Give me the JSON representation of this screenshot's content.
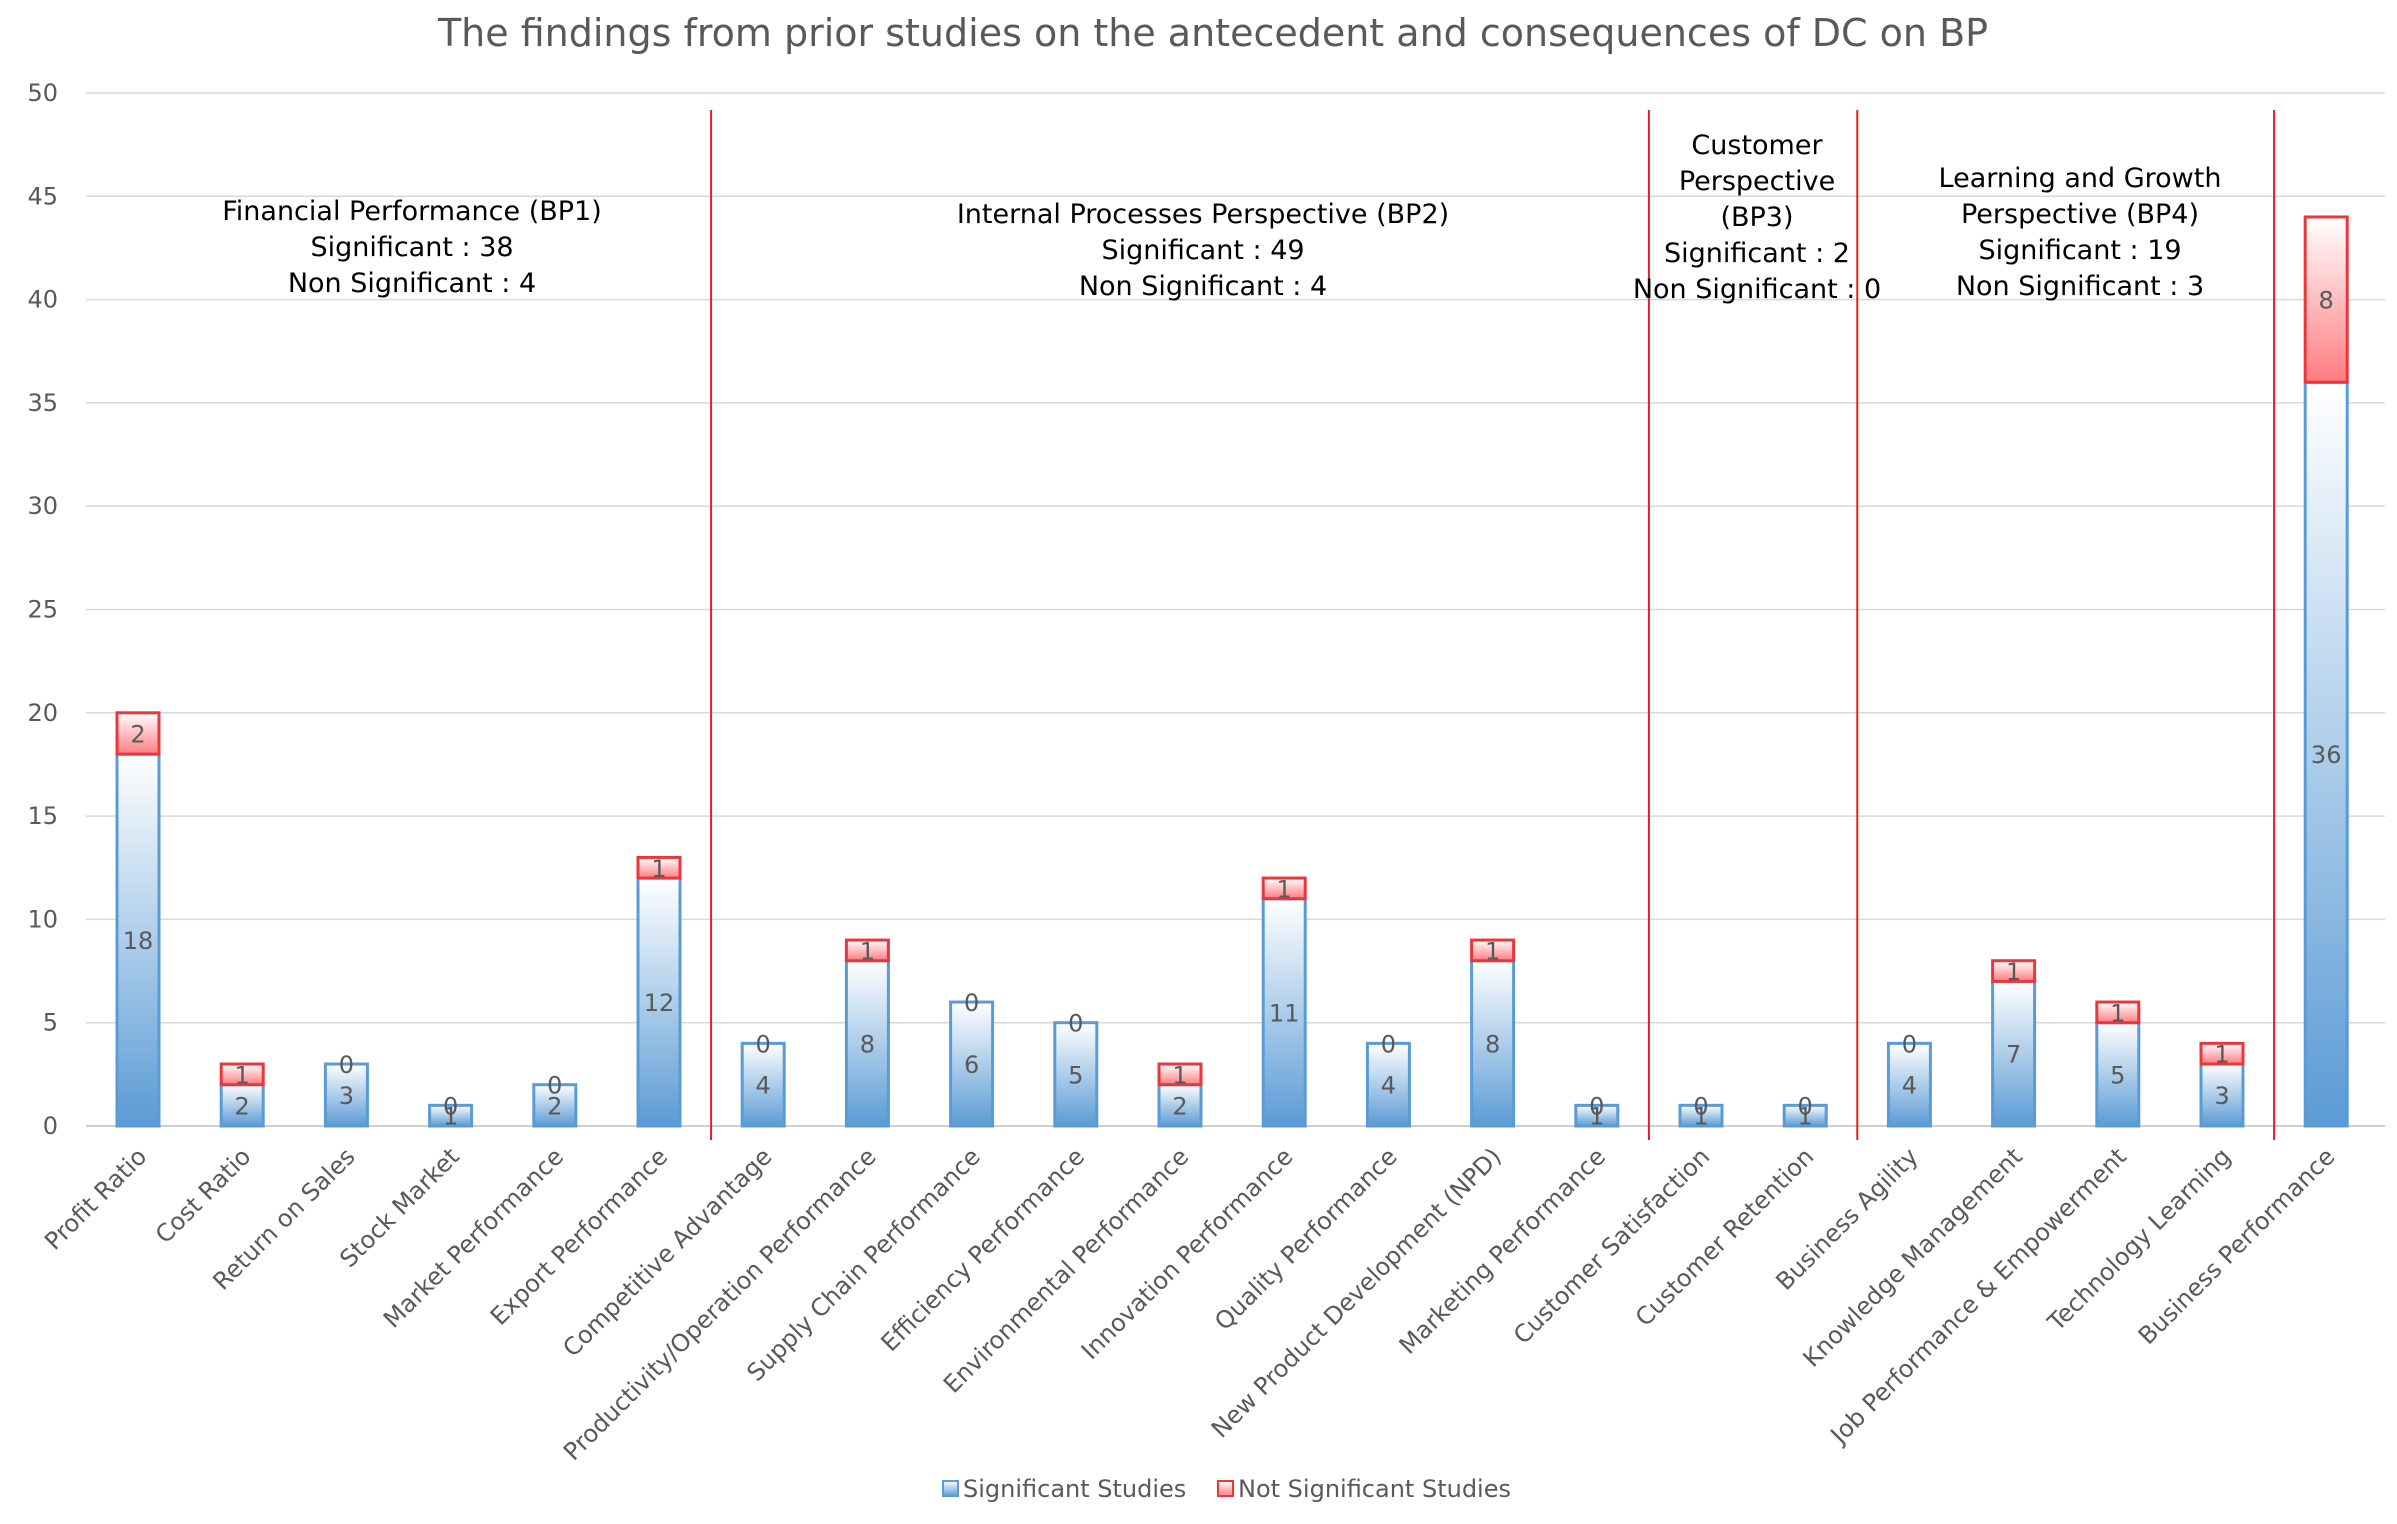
{
  "chart_data": {
    "type": "bar",
    "stacked": true,
    "title": "The findings from prior studies on the antecedent and consequences of DC on BP",
    "xlabel": "",
    "ylabel": "",
    "ylim": [
      0,
      50
    ],
    "yticks": [
      0,
      5,
      10,
      15,
      20,
      25,
      30,
      35,
      40,
      45,
      50
    ],
    "grid": true,
    "legend_position": "bottom",
    "categories": [
      "Profit Ratio",
      "Cost Ratio",
      "Return on Sales",
      "Stock Market",
      "Market Performance",
      "Export Performance",
      "Competitive Advantage",
      "Productivity/Operation Performance",
      "Supply Chain Performance",
      "Efficiency Performance",
      "Environmental Performance",
      "Innovation Performance",
      "Quality Performance",
      "New Product Development (NPD)",
      "Marketing Performance",
      "Customer Satisfaction",
      "Customer Retention",
      "Business Agility",
      "Knowledge Management",
      "Job Performance & Empowerment",
      "Technology Learning",
      "Business Performance"
    ],
    "series": [
      {
        "name": "Significant Studies",
        "color": "#5b9bd5",
        "values": [
          18,
          2,
          3,
          1,
          2,
          12,
          4,
          8,
          6,
          5,
          2,
          11,
          4,
          8,
          1,
          1,
          1,
          4,
          7,
          5,
          3,
          36
        ]
      },
      {
        "name": "Not Significant Studies",
        "color": "#ff7c80",
        "values": [
          2,
          1,
          0,
          0,
          0,
          1,
          0,
          1,
          0,
          0,
          1,
          1,
          0,
          1,
          0,
          0,
          0,
          0,
          1,
          1,
          1,
          8
        ]
      }
    ],
    "dividers_after_category": [
      5,
      14,
      16,
      20
    ],
    "divider_color": "#e02020",
    "annotations": [
      {
        "id": "bp1",
        "lines": [
          "Financial Performance (BP1)",
          "Significant : 38",
          "Non Significant : 4"
        ]
      },
      {
        "id": "bp2",
        "lines": [
          "Internal Processes Perspective (BP2)",
          "Significant : 49",
          "Non Significant : 4"
        ]
      },
      {
        "id": "bp3",
        "lines": [
          "Customer",
          "Perspective",
          "(BP3)",
          "Significant : 2",
          "Non Significant : 0"
        ]
      },
      {
        "id": "bp4",
        "lines": [
          "Learning and Growth",
          "Perspective (BP4)",
          "Significant : 19",
          "Non Significant : 3"
        ]
      }
    ]
  }
}
